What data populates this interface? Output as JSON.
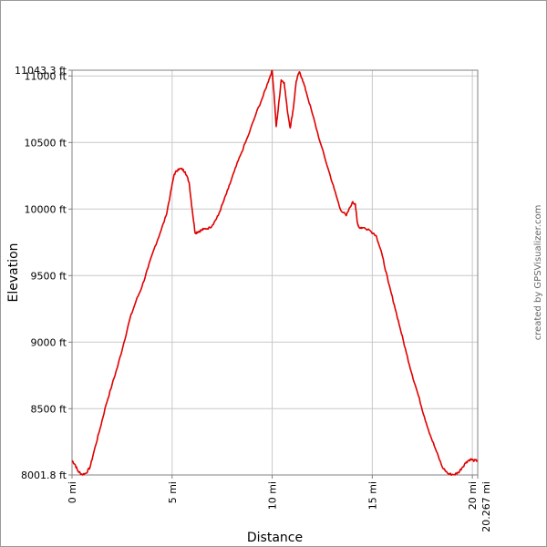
{
  "chart_data": {
    "type": "line",
    "xlabel": "Distance",
    "ylabel": "Elevation",
    "credit": "created by GPSVisualizer.com",
    "xlim": [
      0,
      20.267
    ],
    "ylim": [
      8001.8,
      11043.3
    ],
    "grid": true,
    "x_ticks": [
      {
        "value": 0,
        "label": "0 mi"
      },
      {
        "value": 5,
        "label": "5 mi"
      },
      {
        "value": 10,
        "label": "10 mi"
      },
      {
        "value": 15,
        "label": "15 mi"
      },
      {
        "value": 20,
        "label": "20 mi"
      },
      {
        "value": 20.267,
        "label": "20.267 mi"
      }
    ],
    "y_ticks": [
      {
        "value": 11043.3,
        "label": "11043.3 ft"
      },
      {
        "value": 11000,
        "label": "11000 ft"
      },
      {
        "value": 10500,
        "label": "10500 ft"
      },
      {
        "value": 10000,
        "label": "10000 ft"
      },
      {
        "value": 9500,
        "label": "9500 ft"
      },
      {
        "value": 9000,
        "label": "9000 ft"
      },
      {
        "value": 8500,
        "label": "8500 ft"
      },
      {
        "value": 8001.8,
        "label": "8001.8 ft"
      }
    ],
    "series": [
      {
        "color": "#e00000",
        "x": [
          0,
          0.15,
          0.3,
          0.5,
          0.7,
          0.9,
          1.1,
          1.4,
          1.7,
          2.0,
          2.3,
          2.6,
          2.9,
          3.2,
          3.5,
          3.8,
          4.1,
          4.4,
          4.7,
          4.9,
          5.1,
          5.3,
          5.5,
          5.65,
          5.85,
          6.0,
          6.15,
          6.3,
          6.45,
          6.6,
          6.9,
          7.1,
          7.3,
          7.55,
          7.8,
          8.1,
          8.4,
          8.8,
          9.2,
          9.55,
          9.85,
          10.0,
          10.1,
          10.2,
          10.3,
          10.45,
          10.6,
          10.75,
          10.9,
          11.05,
          11.2,
          11.35,
          11.5,
          11.7,
          12.0,
          12.4,
          12.8,
          13.1,
          13.4,
          13.7,
          14.0,
          14.15,
          14.25,
          14.35,
          14.5,
          14.8,
          15.2,
          15.5,
          15.8,
          16.1,
          16.4,
          16.7,
          17.0,
          17.3,
          17.6,
          17.9,
          18.2,
          18.5,
          18.8,
          19.1,
          19.3,
          19.5,
          19.7,
          19.9,
          20.1,
          20.267
        ],
        "y": [
          8110,
          8080,
          8030,
          8005,
          8015,
          8060,
          8180,
          8350,
          8530,
          8680,
          8830,
          9000,
          9180,
          9310,
          9420,
          9560,
          9700,
          9820,
          9950,
          10100,
          10260,
          10300,
          10300,
          10280,
          10200,
          10000,
          9820,
          9830,
          9840,
          9850,
          9860,
          9900,
          9950,
          10050,
          10150,
          10280,
          10400,
          10550,
          10720,
          10850,
          10980,
          11040,
          10850,
          10620,
          10750,
          10970,
          10950,
          10750,
          10610,
          10750,
          10960,
          11030,
          10980,
          10880,
          10720,
          10500,
          10300,
          10150,
          10000,
          9950,
          10050,
          10040,
          9900,
          9860,
          9860,
          9850,
          9800,
          9650,
          9450,
          9280,
          9100,
          8920,
          8750,
          8600,
          8440,
          8300,
          8180,
          8060,
          8010,
          8005,
          8020,
          8060,
          8100,
          8120,
          8110,
          8110
        ]
      }
    ]
  }
}
